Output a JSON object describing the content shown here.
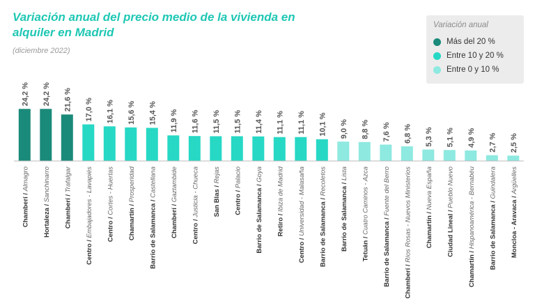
{
  "chart_data": {
    "type": "bar",
    "title": "Variación anual del precio medio de la vivienda en alquiler en Madrid",
    "subtitle": "(diciembre 2022)",
    "ylim": [
      0,
      30
    ],
    "legend": {
      "title": "Variación anual",
      "placement": "top-right",
      "items": [
        {
          "label": "Más del 20 %",
          "color": "#1a8a7a"
        },
        {
          "label": "Entre 10 y 20 %",
          "color": "#27d8c5"
        },
        {
          "label": "Entre 0 y 10 %",
          "color": "#8ee9e0"
        }
      ]
    },
    "bars": [
      {
        "district": "Chamberí",
        "neighborhood": "Almagro",
        "value": 24.2,
        "label": "24,2 %",
        "color": "#1a8a7a"
      },
      {
        "district": "Hortaleza",
        "neighborhood": "Sanchinarro",
        "value": 24.2,
        "label": "24,2 %",
        "color": "#1a8a7a"
      },
      {
        "district": "Chamberí",
        "neighborhood": "Trafalgar",
        "value": 21.6,
        "label": "21,6 %",
        "color": "#1a8a7a"
      },
      {
        "district": "Centro",
        "neighborhood": "Embajadores - Lavapiés",
        "value": 17.0,
        "label": "17,0 %",
        "color": "#27d8c5"
      },
      {
        "district": "Centro",
        "neighborhood": "Cortes - Huertas",
        "value": 16.1,
        "label": "16,1 %",
        "color": "#27d8c5"
      },
      {
        "district": "Chamartín",
        "neighborhood": "Prosperidad",
        "value": 15.6,
        "label": "15,6 %",
        "color": "#27d8c5"
      },
      {
        "district": "Barrio de Salamanca",
        "neighborhood": "Castellana",
        "value": 15.4,
        "label": "15,4 %",
        "color": "#27d8c5"
      },
      {
        "district": "Chamberí",
        "neighborhood": "Gaztambide",
        "value": 11.9,
        "label": "11,9 %",
        "color": "#27d8c5"
      },
      {
        "district": "Centro",
        "neighborhood": "Justicia - Chueca",
        "value": 11.6,
        "label": "11,6 %",
        "color": "#27d8c5"
      },
      {
        "district": "San Blas",
        "neighborhood": "Rejas",
        "value": 11.5,
        "label": "11,5 %",
        "color": "#27d8c5"
      },
      {
        "district": "Centro",
        "neighborhood": "Palacio",
        "value": 11.5,
        "label": "11,5 %",
        "color": "#27d8c5"
      },
      {
        "district": "Barrio de Salamanca",
        "neighborhood": "Goya",
        "value": 11.4,
        "label": "11,4 %",
        "color": "#27d8c5"
      },
      {
        "district": "Retiro",
        "neighborhood": "Ibiza de Madrid",
        "value": 11.1,
        "label": "11,1 %",
        "color": "#27d8c5"
      },
      {
        "district": "Centro",
        "neighborhood": "Universidad - Malasaña",
        "value": 11.1,
        "label": "11,1 %",
        "color": "#27d8c5"
      },
      {
        "district": "Barrio de Salamanca",
        "neighborhood": "Recoletos",
        "value": 10.1,
        "label": "10,1 %",
        "color": "#27d8c5"
      },
      {
        "district": "Barrio de Salamanca",
        "neighborhood": "Lista",
        "value": 9.0,
        "label": "9,0 %",
        "color": "#8ee9e0"
      },
      {
        "district": "Tetuán",
        "neighborhood": "Cuatro Caminos - Azca",
        "value": 8.8,
        "label": "8,8 %",
        "color": "#8ee9e0"
      },
      {
        "district": "Barrio de Salamanca",
        "neighborhood": "Fuente del Berro",
        "value": 7.6,
        "label": "7,6 %",
        "color": "#8ee9e0"
      },
      {
        "district": "Chamberí",
        "neighborhood": "Ríos Rosas - Nuevos Ministerios",
        "value": 6.8,
        "label": "6,8 %",
        "color": "#8ee9e0"
      },
      {
        "district": "Chamartín",
        "neighborhood": "Nueva España",
        "value": 5.3,
        "label": "5,3 %",
        "color": "#8ee9e0"
      },
      {
        "district": "Ciudad Lineal",
        "neighborhood": "Pueblo Nuevo",
        "value": 5.1,
        "label": "5,1 %",
        "color": "#8ee9e0"
      },
      {
        "district": "Chamartín",
        "neighborhood": "Hispanoamérica - Bernabéu",
        "value": 4.9,
        "label": "4,9 %",
        "color": "#8ee9e0"
      },
      {
        "district": "Barrio de Salamanca",
        "neighborhood": "Guindalera",
        "value": 2.7,
        "label": "2,7 %",
        "color": "#8ee9e0"
      },
      {
        "district": "Moncloa - Aravaca",
        "neighborhood": "Argüelles",
        "value": 2.5,
        "label": "2,5 %",
        "color": "#8ee9e0"
      }
    ]
  }
}
